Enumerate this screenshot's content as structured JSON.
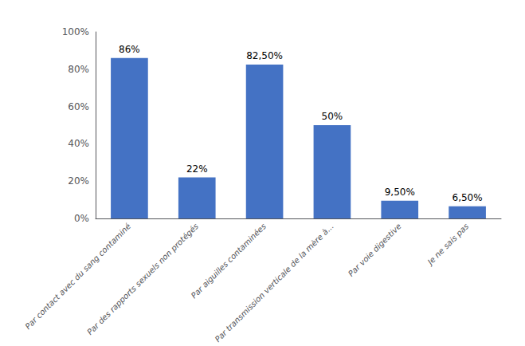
{
  "chart_data": {
    "type": "bar",
    "categories": [
      "Par contact avec du sang contaminé",
      "Par des rapports sexuels non protégés",
      "Par aiguilles contaminées",
      "Par transmission verticale de la mère à...",
      "Par voie digestive",
      "Je ne sais pas"
    ],
    "values": [
      86,
      22,
      82.5,
      50,
      9.5,
      6.5
    ],
    "value_labels": [
      "86%",
      "22%",
      "82,50%",
      "50%",
      "9,50%",
      "6,50%"
    ],
    "data_labels": true,
    "color": "#4472C4",
    "ylim": [
      0,
      100
    ],
    "yticks": [
      {
        "value": 0,
        "label": "0%"
      },
      {
        "value": 20,
        "label": "20%"
      },
      {
        "value": 40,
        "label": "40%"
      },
      {
        "value": 60,
        "label": "60%"
      },
      {
        "value": 80,
        "label": "80%"
      },
      {
        "value": 100,
        "label": "100%"
      }
    ],
    "grid": false
  }
}
